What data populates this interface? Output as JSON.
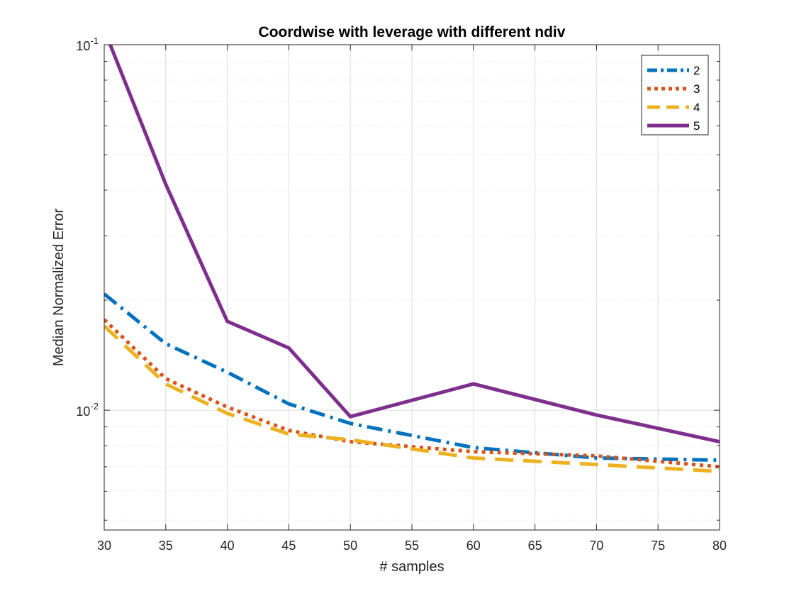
{
  "chart_data": {
    "type": "line",
    "title": "Coordwise with leverage with different ndiv",
    "xlabel": "# samples",
    "ylabel": "Median Normalized Error",
    "x": [
      30,
      35,
      40,
      45,
      50,
      60,
      70,
      80
    ],
    "xlim": [
      30,
      80
    ],
    "xticks": [
      "30",
      "35",
      "40",
      "45",
      "50",
      "55",
      "60",
      "65",
      "70",
      "75",
      "80"
    ],
    "ylim": [
      0.0047,
      0.1
    ],
    "yscale": "log",
    "yticks": [
      {
        "base": "10",
        "exp": "-2"
      },
      {
        "base": "10",
        "exp": "-1"
      }
    ],
    "grid": true,
    "legend_position": "top-right",
    "series": [
      {
        "name": "2",
        "color": "#0072BD",
        "linestyle": "dashdot",
        "values": [
          0.0208,
          0.0152,
          0.0127,
          0.0104,
          0.0092,
          0.0079,
          0.0074,
          0.0073
        ]
      },
      {
        "name": "3",
        "color": "#D95319",
        "linestyle": "dotted",
        "values": [
          0.0177,
          0.0122,
          0.0102,
          0.0088,
          0.0082,
          0.0077,
          0.0075,
          0.007
        ]
      },
      {
        "name": "4",
        "color": "#EDB120",
        "linestyle": "dashed",
        "values": [
          0.017,
          0.0118,
          0.0098,
          0.0086,
          0.0083,
          0.0074,
          0.0071,
          0.0068
        ]
      },
      {
        "name": "5",
        "color": "#7E2F8E",
        "linestyle": "solid",
        "values": [
          0.11,
          0.0415,
          0.0175,
          0.0148,
          0.0096,
          0.0118,
          0.0097,
          0.0082
        ]
      }
    ]
  }
}
